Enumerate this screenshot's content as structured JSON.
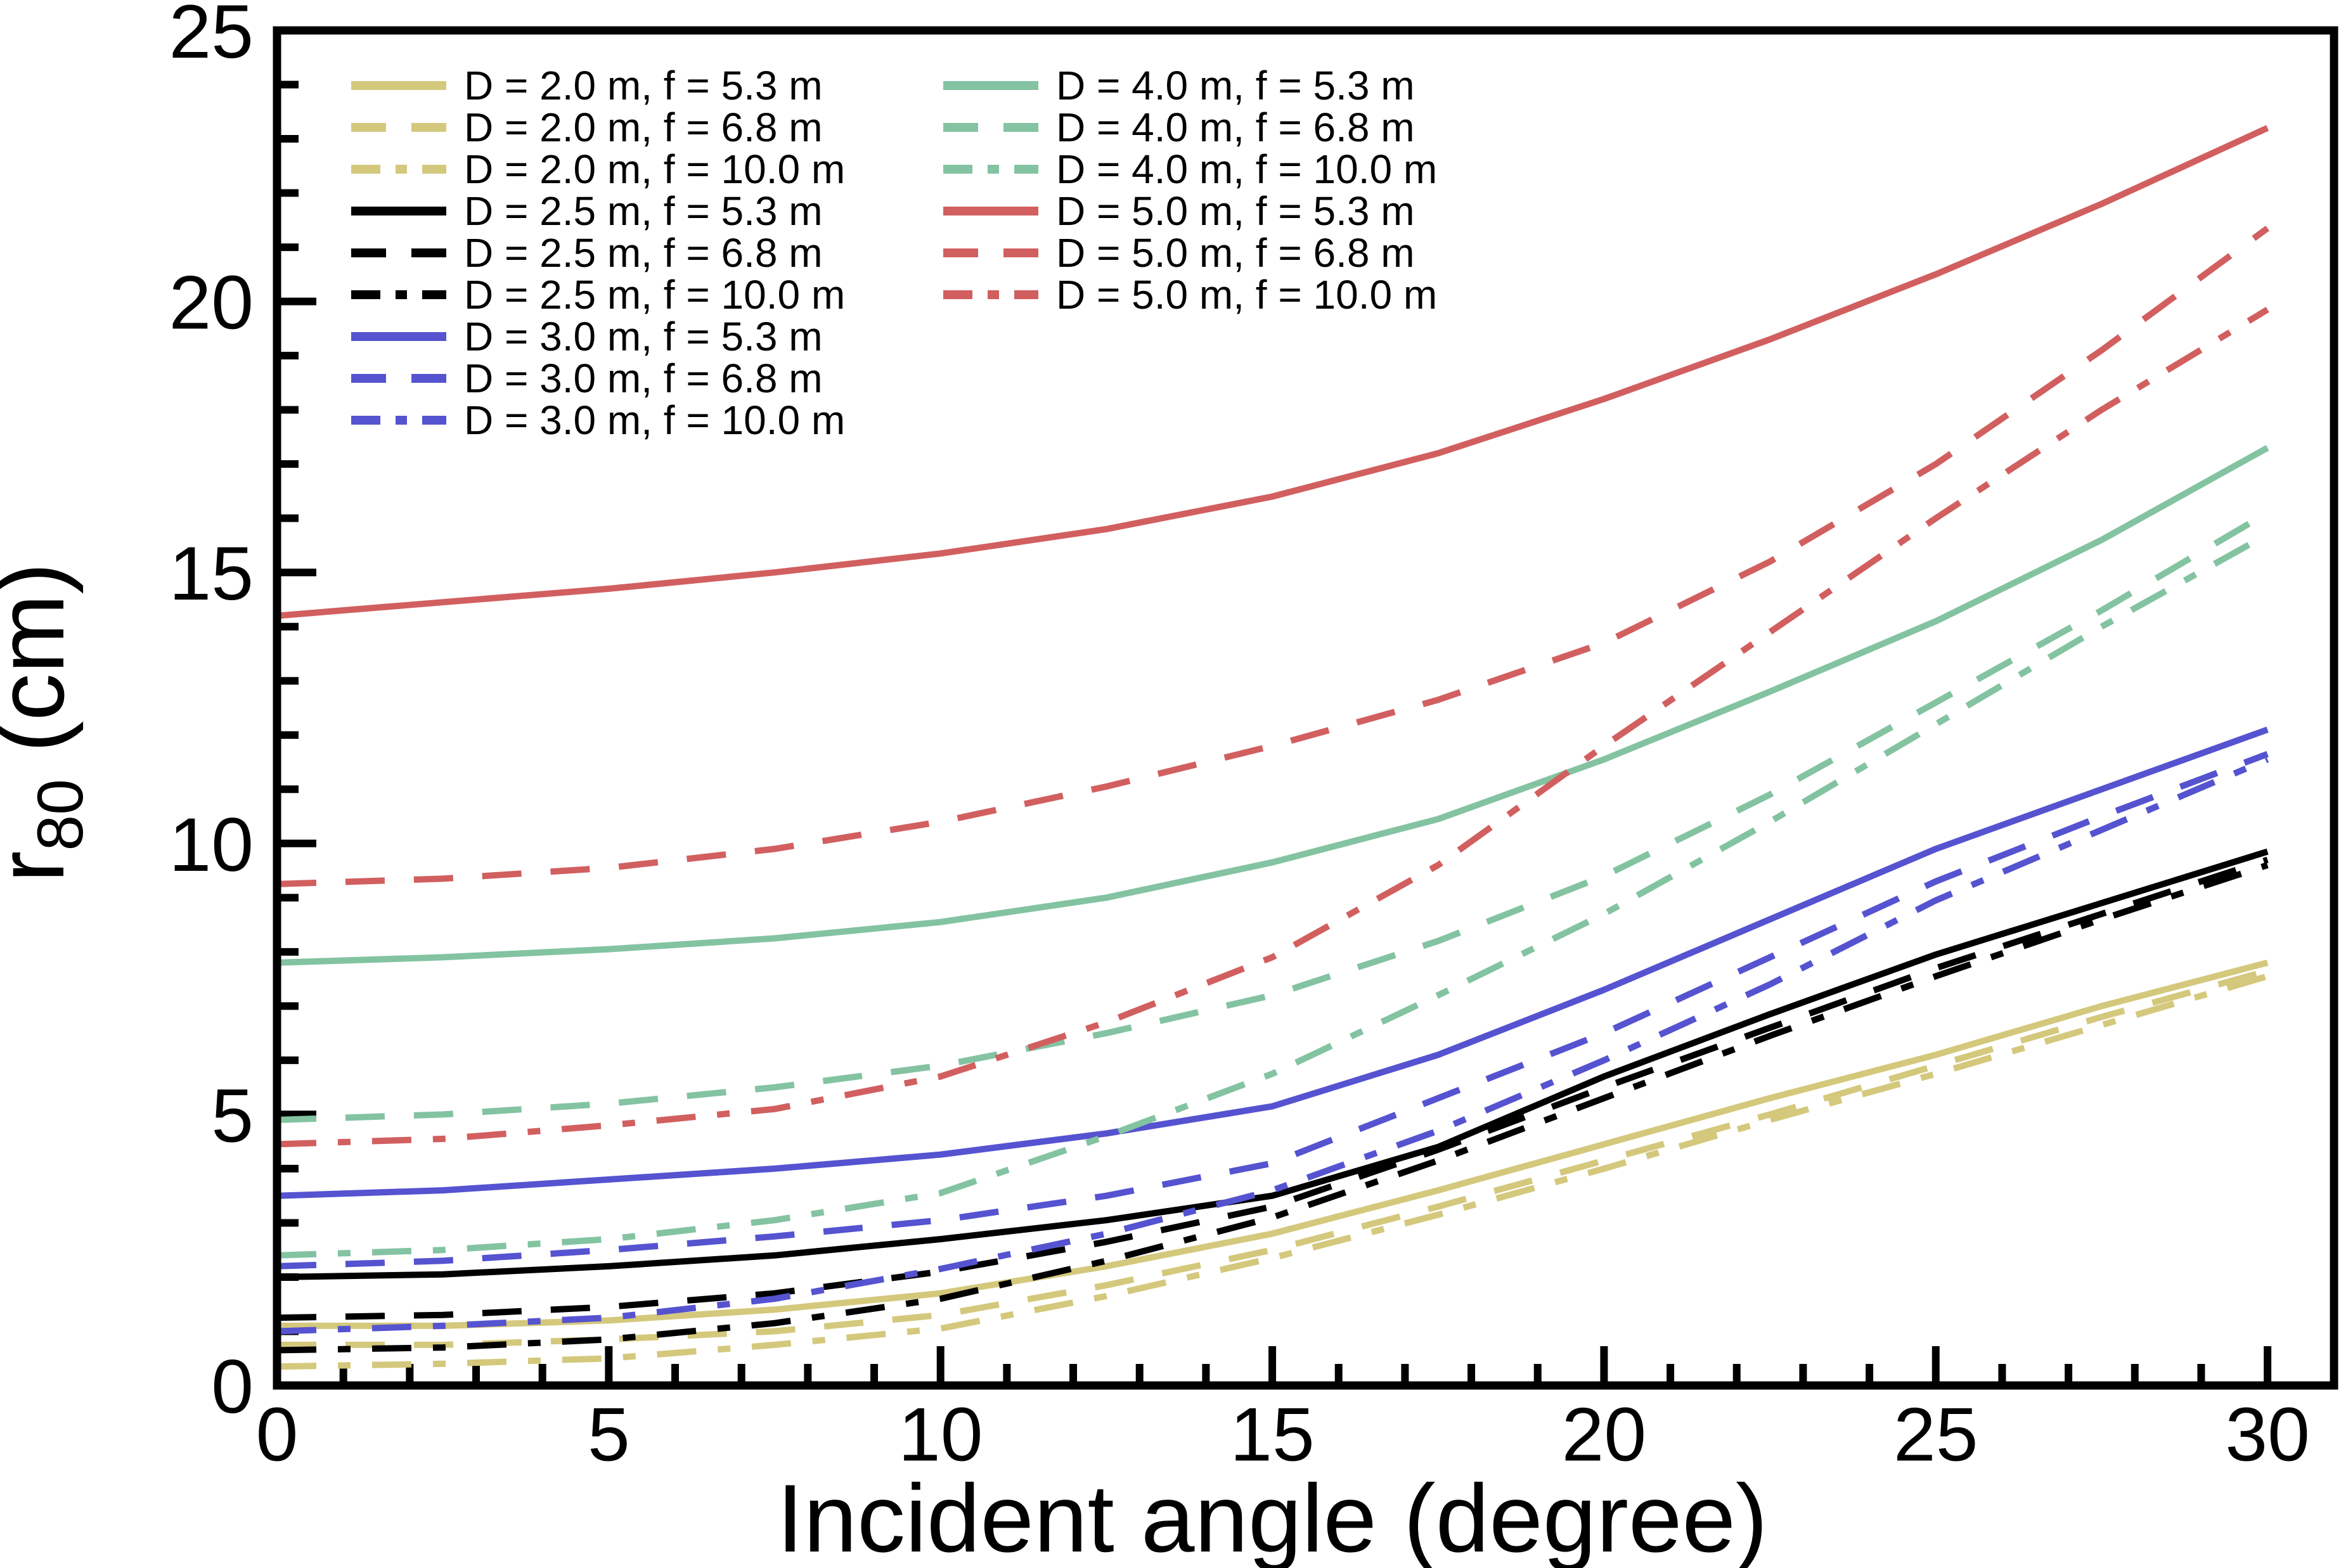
{
  "figure": {
    "background": "#ffffff"
  },
  "axes": {
    "xlabel": "Incident angle (degree)",
    "ylabel_r": "r",
    "ylabel_sub": "80",
    "ylabel_unit": " (cm)",
    "xlim": [
      0,
      31
    ],
    "ylim": [
      0,
      25
    ],
    "x_major_ticks": [
      0,
      5,
      10,
      15,
      20,
      25,
      30
    ],
    "y_major_ticks": [
      0,
      5,
      10,
      15,
      20,
      25
    ],
    "x_minor_step": 1,
    "y_minor_step": 1,
    "grid": "off",
    "tick_color": "#000000",
    "spine_color": "#000000"
  },
  "legend": {
    "position": "upper-left",
    "columns": 2,
    "col1_rows": 9,
    "col2_rows": 6
  },
  "chart_data": {
    "type": "line",
    "title": "",
    "xlabel": "Incident angle (degree)",
    "ylabel": "r80 (cm)",
    "xlim": [
      0,
      31
    ],
    "ylim": [
      0,
      25
    ],
    "x": [
      0,
      2.5,
      5,
      7.5,
      10,
      12.5,
      15,
      17.5,
      20,
      22.5,
      25,
      27.5,
      30
    ],
    "series": [
      {
        "label": "D = 2.0 m, f = 5.3 m",
        "color": "#d4c87c",
        "style": "solid",
        "values": [
          1.1,
          1.1,
          1.2,
          1.4,
          1.7,
          2.2,
          2.8,
          3.6,
          4.45,
          5.3,
          6.1,
          7.0,
          7.8
        ]
      },
      {
        "label": "D = 2.0 m, f = 6.8 m",
        "color": "#d4c87c",
        "style": "dashed",
        "values": [
          0.75,
          0.75,
          0.85,
          1.0,
          1.3,
          1.85,
          2.5,
          3.3,
          4.15,
          5.0,
          5.9,
          6.8,
          7.65
        ]
      },
      {
        "label": "D = 2.0 m, f = 10.0 m",
        "color": "#d4c87c",
        "style": "dashdot",
        "values": [
          0.35,
          0.4,
          0.5,
          0.75,
          1.05,
          1.65,
          2.35,
          3.15,
          4.0,
          4.9,
          5.75,
          6.65,
          7.55
        ]
      },
      {
        "label": "D = 2.5 m, f = 5.3 m",
        "color": "#000000",
        "style": "solid",
        "values": [
          2.0,
          2.05,
          2.2,
          2.4,
          2.7,
          3.05,
          3.5,
          4.4,
          5.7,
          6.85,
          7.95,
          8.9,
          9.85
        ]
      },
      {
        "label": "D = 2.5 m, f = 6.8 m",
        "color": "#000000",
        "style": "dashed",
        "values": [
          1.25,
          1.3,
          1.45,
          1.7,
          2.1,
          2.65,
          3.3,
          4.35,
          5.5,
          6.6,
          7.7,
          8.7,
          9.7
        ]
      },
      {
        "label": "D = 2.5 m, f = 10.0 m",
        "color": "#000000",
        "style": "dashdot",
        "values": [
          0.65,
          0.7,
          0.85,
          1.15,
          1.6,
          2.3,
          3.1,
          4.15,
          5.3,
          6.45,
          7.55,
          8.6,
          9.6
        ]
      },
      {
        "label": "D = 3.0 m, f = 5.3 m",
        "color": "#5553d0",
        "style": "solid",
        "values": [
          3.5,
          3.6,
          3.8,
          4.0,
          4.26,
          4.65,
          5.15,
          6.1,
          7.3,
          8.6,
          9.9,
          11.0,
          12.1
        ]
      },
      {
        "label": "D = 3.0 m, f = 6.8 m",
        "color": "#5553d0",
        "style": "dashed",
        "values": [
          2.2,
          2.3,
          2.5,
          2.75,
          3.05,
          3.5,
          4.1,
          5.3,
          6.5,
          7.9,
          9.3,
          10.5,
          11.65
        ]
      },
      {
        "label": "D = 3.0 m, f = 10.0 m",
        "color": "#5553d0",
        "style": "dashdot",
        "values": [
          1.0,
          1.1,
          1.25,
          1.6,
          2.15,
          2.8,
          3.6,
          4.7,
          6.0,
          7.4,
          8.95,
          10.25,
          11.55
        ]
      },
      {
        "label": "D = 4.0 m, f = 5.3 m",
        "color": "#83c3a1",
        "style": "solid",
        "values": [
          7.8,
          7.9,
          8.05,
          8.25,
          8.55,
          9.0,
          9.65,
          10.45,
          11.55,
          12.8,
          14.1,
          15.6,
          17.3
        ]
      },
      {
        "label": "D = 4.0 m, f = 6.8 m",
        "color": "#83c3a1",
        "style": "dashed",
        "values": [
          4.9,
          5.0,
          5.2,
          5.5,
          5.9,
          6.5,
          7.2,
          8.2,
          9.4,
          10.9,
          12.6,
          14.3,
          16.1
        ]
      },
      {
        "label": "D = 4.0 m, f = 10.0 m",
        "color": "#83c3a1",
        "style": "dashdot",
        "values": [
          2.4,
          2.5,
          2.7,
          3.05,
          3.55,
          4.6,
          5.75,
          7.2,
          8.7,
          10.4,
          12.2,
          14.0,
          15.7
        ]
      },
      {
        "label": "D = 5.0 m, f = 5.3 m",
        "color": "#d25f5f",
        "style": "solid",
        "values": [
          14.2,
          14.45,
          14.7,
          15.0,
          15.35,
          15.8,
          16.4,
          17.2,
          18.2,
          19.3,
          20.5,
          21.8,
          23.2
        ]
      },
      {
        "label": "D = 5.0 m, f = 6.8 m",
        "color": "#d25f5f",
        "style": "dashed",
        "values": [
          9.25,
          9.35,
          9.55,
          9.9,
          10.4,
          11.05,
          11.8,
          12.65,
          13.7,
          15.2,
          17.0,
          19.1,
          21.35
        ]
      },
      {
        "label": "D = 5.0 m, f = 10.0 m",
        "color": "#d25f5f",
        "style": "dashdot",
        "values": [
          4.45,
          4.55,
          4.8,
          5.1,
          5.7,
          6.7,
          7.9,
          9.6,
          11.8,
          13.9,
          16.0,
          18.0,
          19.85
        ]
      }
    ],
    "legend_position": "upper-left"
  }
}
